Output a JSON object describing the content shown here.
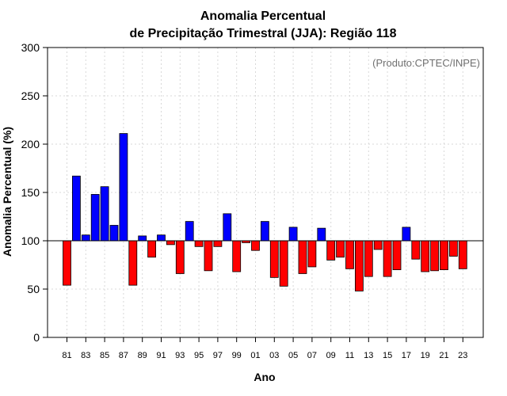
{
  "chart_data": {
    "type": "bar",
    "title_line1": "Anomalia Percentual",
    "title_line2": "de Precipitação Trimestral (JJA): Região 118",
    "xlabel": "Ano",
    "ylabel": "Anomalia Percentual (%)",
    "credit": "(Produto:CPTEC/INPE)",
    "ylim": [
      0,
      300
    ],
    "yticks": [
      0,
      50,
      100,
      150,
      200,
      250,
      300
    ],
    "baseline": 100,
    "grid": true,
    "colors": {
      "above": "#0000ff",
      "below": "#ff0000",
      "edge": "#000000",
      "baseline": "#000000",
      "grid": "#d8d8d8"
    },
    "categories": [
      "81",
      "82",
      "83",
      "84",
      "85",
      "86",
      "87",
      "88",
      "89",
      "90",
      "91",
      "92",
      "93",
      "94",
      "95",
      "96",
      "97",
      "98",
      "99",
      "00",
      "01",
      "02",
      "03",
      "04",
      "05",
      "06",
      "07",
      "08",
      "09",
      "10",
      "11",
      "12",
      "13",
      "14",
      "15",
      "16",
      "17",
      "18",
      "19",
      "20",
      "21",
      "22",
      "23"
    ],
    "tick_labels": [
      "81",
      "83",
      "85",
      "87",
      "89",
      "91",
      "93",
      "95",
      "97",
      "99",
      "01",
      "03",
      "05",
      "07",
      "09",
      "11",
      "13",
      "15",
      "17",
      "19",
      "21",
      "23"
    ],
    "values": [
      54,
      167,
      106,
      148,
      156,
      116,
      211,
      54,
      105,
      83,
      106,
      96,
      66,
      120,
      94,
      69,
      94,
      128,
      68,
      98,
      90,
      120,
      62,
      53,
      114,
      66,
      73,
      113,
      80,
      83,
      71,
      48,
      63,
      91,
      63,
      70,
      114,
      81,
      68,
      69,
      70,
      84,
      71
    ]
  }
}
